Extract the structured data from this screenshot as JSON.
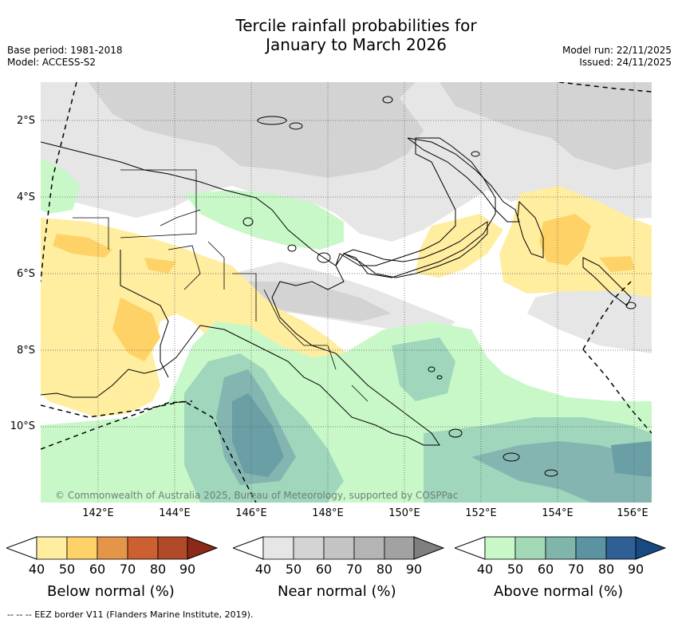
{
  "title": {
    "line1": "Tercile rainfall probabilities for",
    "line2": "January to March 2026"
  },
  "meta": {
    "base_period": "Base period: 1981-2018",
    "model": "Model: ACCESS-S2",
    "model_run": "Model run: 22/11/2025",
    "issued": "Issued: 24/11/2025"
  },
  "map": {
    "region": "Papua New Guinea",
    "lat_labels": [
      "2°S",
      "4°S",
      "6°S",
      "8°S",
      "10°S"
    ],
    "lon_labels": [
      "142°E",
      "144°E",
      "146°E",
      "148°E",
      "150°E",
      "152°E",
      "154°E",
      "156°E"
    ],
    "copyright": "© Commonwealth of Australia 2025, Bureau of Meteorology, supported by COSPPac",
    "colors": {
      "below_40": "#ffeda0",
      "below_50": "#fed266",
      "near_40": "#e6e6e6",
      "near_50": "#d3d3d3",
      "above_40": "#c8f8c8",
      "above_50": "#9fd6bc",
      "above_60": "#84b5b0",
      "above_70": "#6a9fa6"
    }
  },
  "colorbars": [
    {
      "title": "Below normal (%)",
      "ticks": [
        "40",
        "50",
        "60",
        "70",
        "80",
        "90"
      ],
      "colors": [
        "#ffeda0",
        "#fed266",
        "#e4954a",
        "#cc6030",
        "#b04a28",
        "#8c2a1a"
      ]
    },
    {
      "title": "Near normal (%)",
      "ticks": [
        "40",
        "50",
        "60",
        "70",
        "80",
        "90"
      ],
      "colors": [
        "#e6e6e6",
        "#d4d4d4",
        "#c4c4c4",
        "#b4b4b4",
        "#a2a2a2",
        "#7f7f7f"
      ]
    },
    {
      "title": "Above normal (%)",
      "ticks": [
        "40",
        "50",
        "60",
        "70",
        "80",
        "90"
      ],
      "colors": [
        "#c8f8c8",
        "#a3d9b7",
        "#7fb5ab",
        "#5b93a2",
        "#305f96",
        "#174a80"
      ]
    }
  ],
  "footnote": "-- -- -- EEZ border V11 (Flanders Marine Institute, 2019)."
}
